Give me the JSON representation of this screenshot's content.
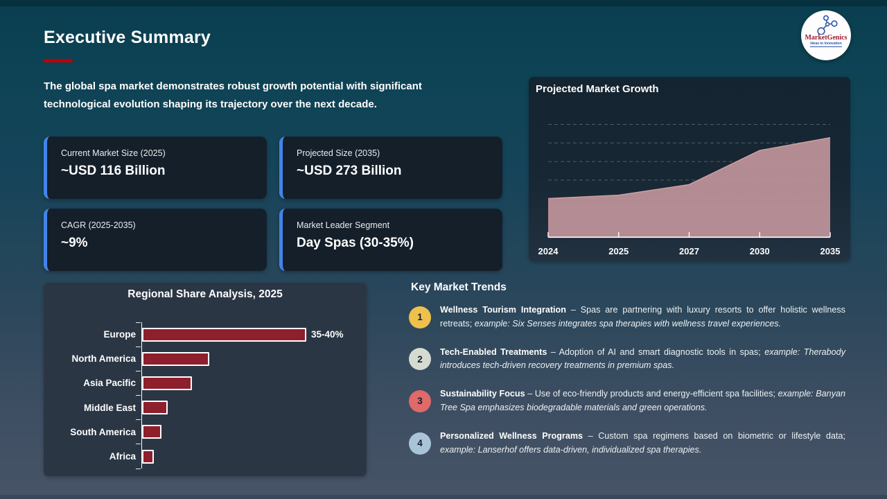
{
  "slide": {
    "title": "Executive Summary",
    "intro": "The global spa market demonstrates robust growth potential with significant technological evolution shaping its trajectory over the next decade."
  },
  "logo": {
    "name": "MarketGenics",
    "tagline": "Ideas to Innovation"
  },
  "stats": [
    {
      "label": "Current Market Size (2025)",
      "value": "~USD 116 Billion"
    },
    {
      "label": "Projected Size (2035)",
      "value": "~USD 273 Billion"
    },
    {
      "label": "CAGR (2025-2035)",
      "value": "~9%"
    },
    {
      "label": "Market Leader Segment",
      "value": "Day Spas (30-35%)"
    }
  ],
  "growth_chart": {
    "title": "Projected Market Growth"
  },
  "regional_chart": {
    "title": "Regional Share Analysis, 2025"
  },
  "trends": {
    "heading": "Key Market Trends",
    "items": [
      {
        "number": "1",
        "color": "#eec14d",
        "title": "Wellness Tourism Integration",
        "desc": " – Spas are partnering with luxury resorts to offer holistic wellness retreats; ",
        "example": "example: Six Senses integrates spa therapies with wellness travel experiences."
      },
      {
        "number": "2",
        "color": "#d6dbd1",
        "title": "Tech-Enabled Treatments",
        "desc": " – Adoption of AI and smart diagnostic tools in spas; ",
        "example": "example: Therabody introduces tech-driven recovery treatments in premium spas."
      },
      {
        "number": "3",
        "color": "#e0696a",
        "title": "Sustainability Focus",
        "desc": " – Use of eco-friendly products and energy-efficient spa facilities; ",
        "example": "example: Banyan Tree Spa emphasizes biodegradable materials and green operations."
      },
      {
        "number": "4",
        "color": "#a9c4d9",
        "title": "Personalized Wellness Programs",
        "desc": " – Custom spa regimens based on biometric or lifestyle data; ",
        "example": "example: Lanserhof offers data-driven, individualized spa therapies."
      }
    ]
  },
  "chart_data": [
    {
      "type": "area",
      "title": "Projected Market Growth",
      "x": [
        "2024",
        "2025",
        "2027",
        "2030",
        "2035"
      ],
      "values": [
        107,
        116,
        145,
        238,
        273
      ],
      "xlabel": "",
      "ylabel": "",
      "ylim": [
        0,
        310
      ],
      "grid": true,
      "gridlines": 6,
      "fill_color": "#c0939a"
    },
    {
      "type": "bar",
      "title": "Regional Share Analysis, 2025",
      "orientation": "horizontal",
      "categories": [
        "Europe",
        "North America",
        "Asia Pacific",
        "Middle East",
        "South America",
        "Africa"
      ],
      "values": [
        37.5,
        15,
        11,
        5.3,
        3.8,
        2.1
      ],
      "annotations": [
        {
          "category": "Europe",
          "label": "35-40%"
        }
      ],
      "xlim": [
        0,
        40
      ],
      "bar_color": "#8e1f2c"
    }
  ],
  "colors": {
    "accent_red": "#c00000",
    "card_border_blue": "#4285e8",
    "area_pink": "#c0939a",
    "bar_red": "#8e1f2c"
  }
}
